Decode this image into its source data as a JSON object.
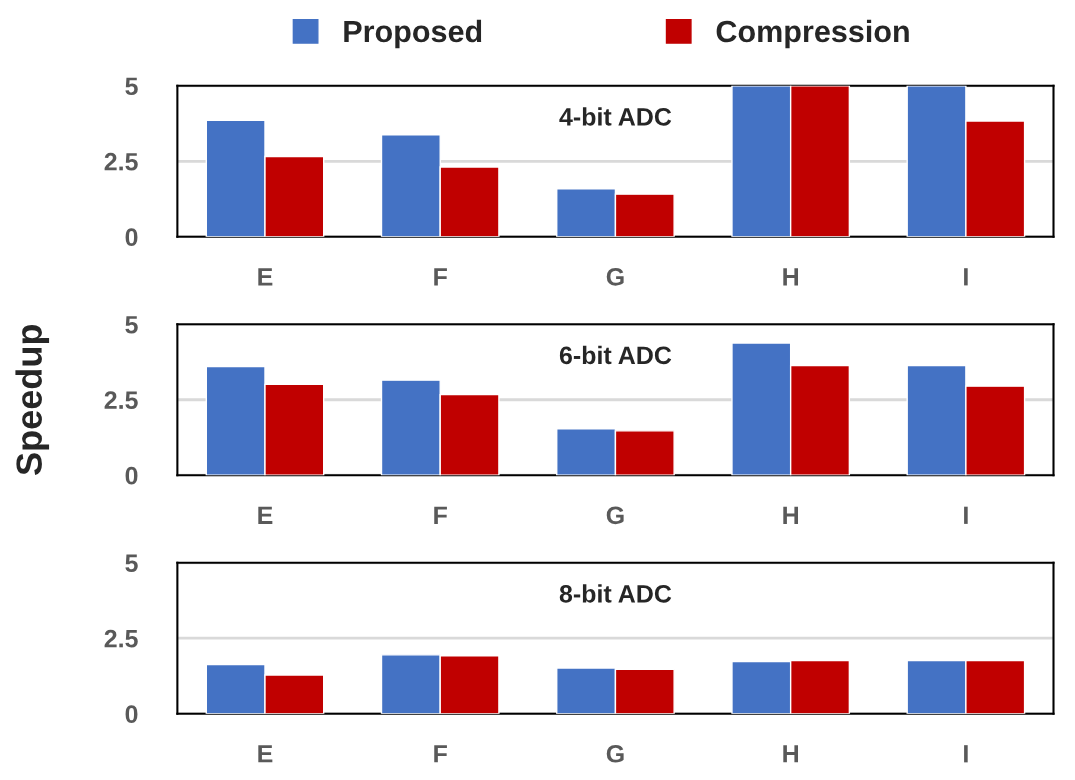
{
  "chart_data": [
    {
      "type": "bar",
      "title": "4-bit ADC",
      "categories": [
        "E",
        "F",
        "G",
        "H",
        "I"
      ],
      "ylim": [
        0,
        5
      ],
      "yticks": [
        0,
        2.5,
        5
      ],
      "grid": "y",
      "legend": "top",
      "series": [
        {
          "name": "Proposed",
          "color": "#4472c4",
          "values": [
            3.86,
            3.38,
            1.59,
            5,
            5
          ]
        },
        {
          "name": "Compression",
          "color": "#c00000",
          "values": [
            2.66,
            2.31,
            1.41,
            5,
            3.83
          ]
        }
      ]
    },
    {
      "type": "bar",
      "title": "6-bit ADC",
      "ylabel": "Speedup",
      "categories": [
        "E",
        "F",
        "G",
        "H",
        "I"
      ],
      "ylim": [
        0,
        5
      ],
      "yticks": [
        0,
        2.5,
        5
      ],
      "grid": "y",
      "series": [
        {
          "color": "#4472c4",
          "values": [
            3.6,
            3.15,
            1.54,
            4.38,
            3.63
          ]
        },
        {
          "color": "#c00000",
          "values": [
            3.01,
            2.67,
            1.47,
            3.63,
            2.95
          ]
        }
      ]
    },
    {
      "type": "bar",
      "title": "8-bit ADC",
      "categories": [
        "E",
        "F",
        "G",
        "H",
        "I"
      ],
      "ylim": [
        0,
        5
      ],
      "yticks": [
        0,
        2.5,
        5
      ],
      "grid": "y",
      "series": [
        {
          "color": "#4472c4",
          "values": [
            1.63,
            1.95,
            1.51,
            1.73,
            1.76
          ]
        },
        {
          "color": "#c00000",
          "values": [
            1.28,
            1.92,
            1.47,
            1.76,
            1.76
          ]
        }
      ]
    }
  ]
}
